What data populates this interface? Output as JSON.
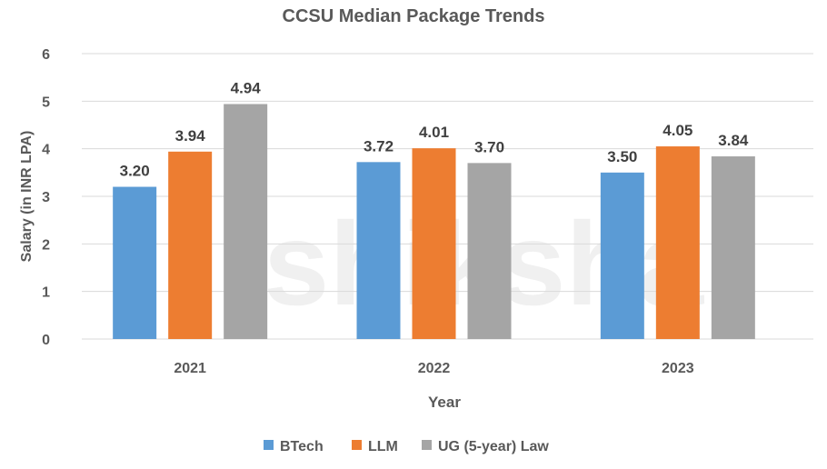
{
  "chart_data": {
    "type": "bar",
    "title": "CCSU Median Package Trends",
    "xlabel": "Year",
    "ylabel": "Salary (in INR LPA)",
    "categories": [
      "2021",
      "2022",
      "2023"
    ],
    "series": [
      {
        "name": "BTech",
        "values": [
          3.2,
          3.72,
          3.5
        ],
        "color": "#5B9BD5"
      },
      {
        "name": "LLM",
        "values": [
          3.94,
          4.01,
          4.05
        ],
        "color": "#ED7D31"
      },
      {
        "name": "UG (5-year) Law",
        "values": [
          4.94,
          3.7,
          3.84
        ],
        "color": "#A5A5A5"
      }
    ],
    "ylim": [
      0,
      6
    ],
    "yticks": [
      "0",
      "1",
      "2",
      "3",
      "4",
      "5",
      "6"
    ],
    "data_labels": [
      [
        "3.20",
        "3.72",
        "3.50"
      ],
      [
        "3.94",
        "4.01",
        "4.05"
      ],
      [
        "4.94",
        "3.70",
        "3.84"
      ]
    ],
    "grid": true,
    "legend": "bottom"
  },
  "watermark": "shiksha"
}
